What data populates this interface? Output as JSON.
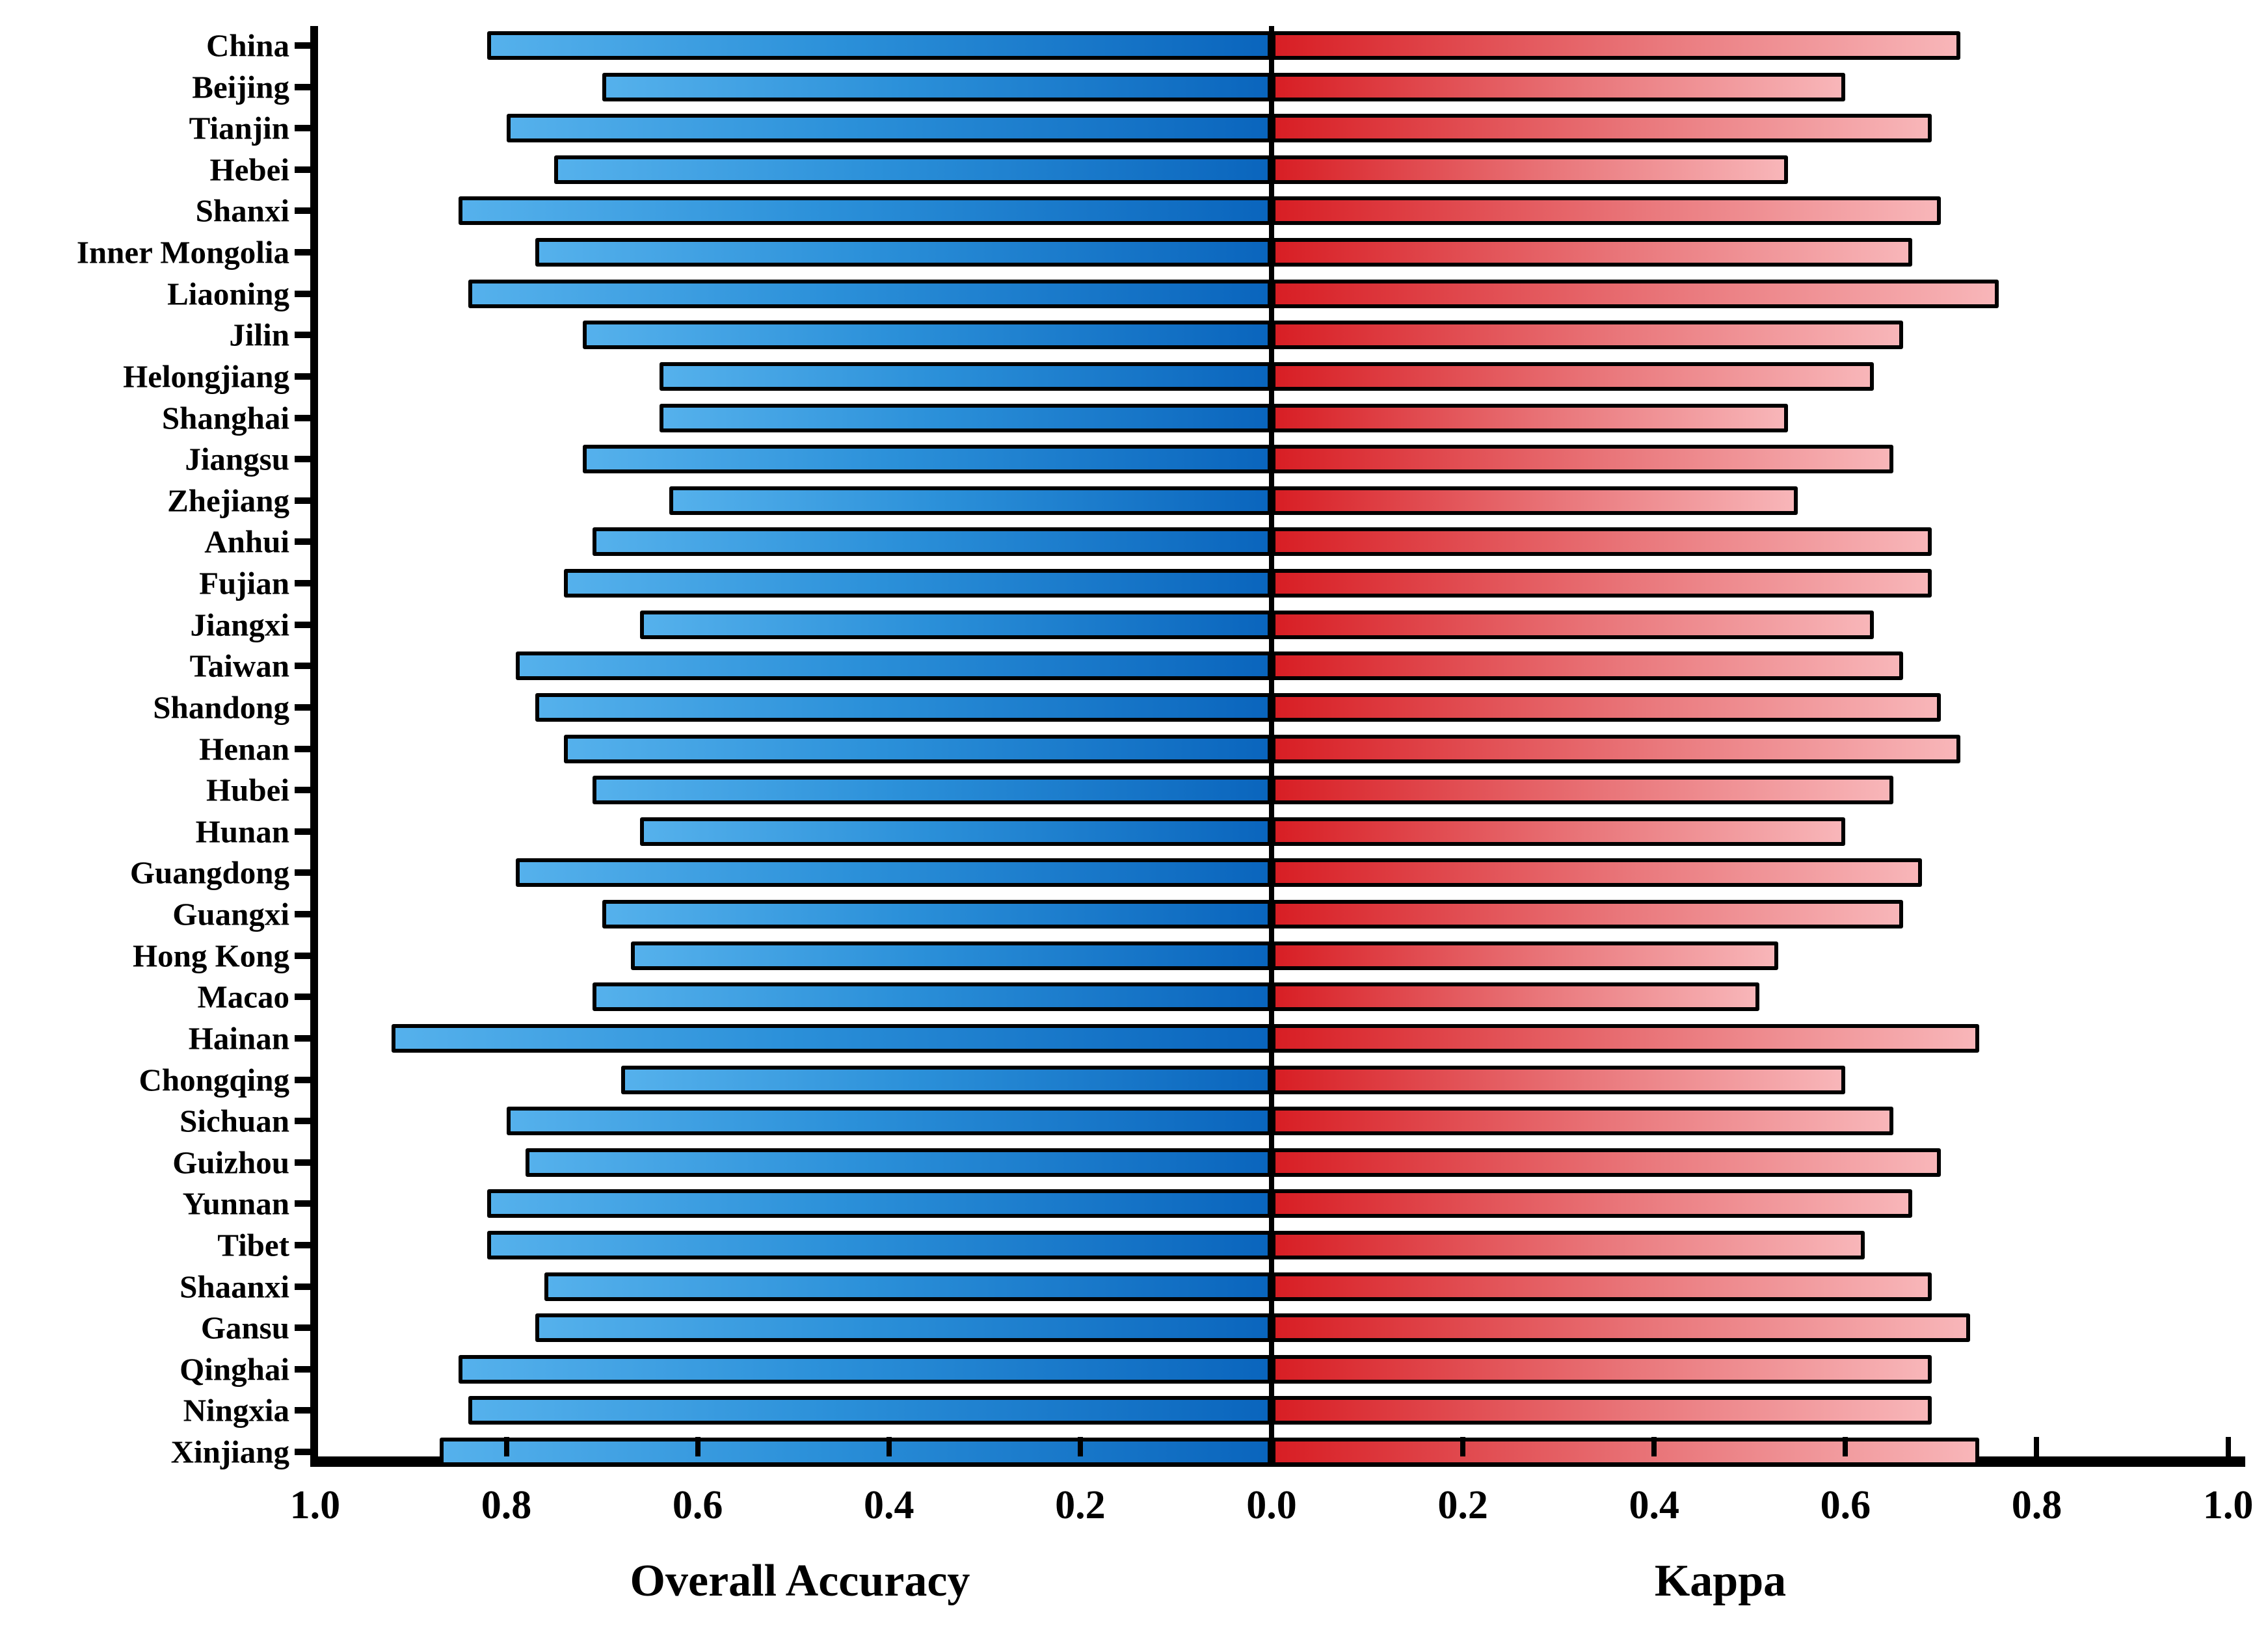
{
  "chart_data": {
    "type": "bar",
    "variant": "diverging-horizontal-mirrored",
    "categories": [
      "China",
      "Beijing",
      "Tianjin",
      "Hebei",
      "Shanxi",
      "Inner Mongolia",
      "Liaoning",
      "Jilin",
      "Helongjiang",
      "Shanghai",
      "Jiangsu",
      "Zhejiang",
      "Anhui",
      "Fujian",
      "Jiangxi",
      "Taiwan",
      "Shandong",
      "Henan",
      "Hubei",
      "Hunan",
      "Guangdong",
      "Guangxi",
      "Hong Kong",
      "Macao",
      "Hainan",
      "Chongqing",
      "Sichuan",
      "Guizhou",
      "Yunnan",
      "Tibet",
      "Shaanxi",
      "Gansu",
      "Qinghai",
      "Ningxia",
      "Xinjiang"
    ],
    "series": [
      {
        "name": "Overall Accuracy",
        "side": "left",
        "color_start": "#55b1ec",
        "color_end": "#0a65bd",
        "values": [
          0.82,
          0.7,
          0.8,
          0.75,
          0.85,
          0.77,
          0.84,
          0.72,
          0.64,
          0.64,
          0.72,
          0.63,
          0.71,
          0.74,
          0.66,
          0.79,
          0.77,
          0.74,
          0.71,
          0.66,
          0.79,
          0.7,
          0.67,
          0.71,
          0.92,
          0.68,
          0.8,
          0.78,
          0.82,
          0.82,
          0.76,
          0.77,
          0.85,
          0.84,
          0.87
        ]
      },
      {
        "name": "Kappa",
        "side": "right",
        "color_start": "#d81e24",
        "color_end": "#f8b6b9",
        "values": [
          0.72,
          0.6,
          0.69,
          0.54,
          0.7,
          0.67,
          0.76,
          0.66,
          0.63,
          0.54,
          0.65,
          0.55,
          0.69,
          0.69,
          0.63,
          0.66,
          0.7,
          0.72,
          0.65,
          0.6,
          0.68,
          0.66,
          0.53,
          0.51,
          0.74,
          0.6,
          0.65,
          0.7,
          0.67,
          0.62,
          0.69,
          0.73,
          0.69,
          0.69,
          0.74
        ]
      }
    ],
    "xlabel_left": "Overall Accuracy",
    "xlabel_right": "Kappa",
    "left_axis_ticks": [
      "1.0",
      "0.8",
      "0.6",
      "0.4",
      "0.2",
      "0.0"
    ],
    "right_axis_ticks": [
      "0.2",
      "0.4",
      "0.6",
      "0.8",
      "1.0"
    ],
    "xlim": [
      0,
      1.0
    ],
    "grid": false,
    "legend": false,
    "bar_outline_color": "#000000",
    "background_color": "#ffffff"
  }
}
